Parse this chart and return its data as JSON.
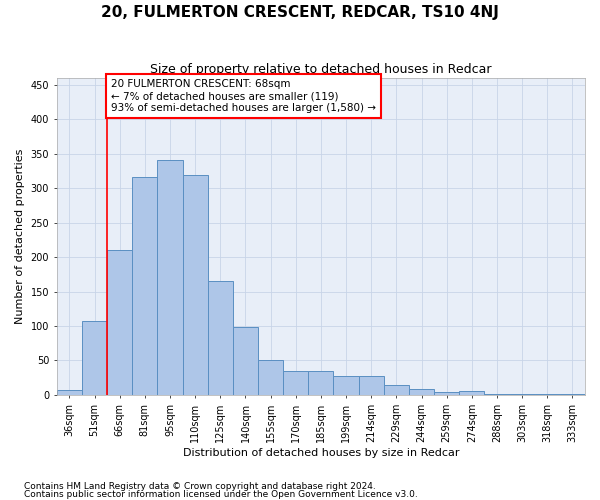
{
  "title": "20, FULMERTON CRESCENT, REDCAR, TS10 4NJ",
  "subtitle": "Size of property relative to detached houses in Redcar",
  "xlabel": "Distribution of detached houses by size in Redcar",
  "ylabel": "Number of detached properties",
  "footnote1": "Contains HM Land Registry data © Crown copyright and database right 2024.",
  "footnote2": "Contains public sector information licensed under the Open Government Licence v3.0.",
  "bin_labels": [
    "36sqm",
    "51sqm",
    "66sqm",
    "81sqm",
    "95sqm",
    "110sqm",
    "125sqm",
    "140sqm",
    "155sqm",
    "170sqm",
    "185sqm",
    "199sqm",
    "214sqm",
    "229sqm",
    "244sqm",
    "259sqm",
    "274sqm",
    "288sqm",
    "303sqm",
    "318sqm",
    "333sqm"
  ],
  "bar_values": [
    7,
    108,
    211,
    317,
    341,
    319,
    165,
    99,
    50,
    35,
    35,
    28,
    28,
    15,
    8,
    4,
    5,
    2,
    1,
    1,
    2
  ],
  "bar_color": "#aec6e8",
  "bar_edge_color": "#5a8fc2",
  "grid_color": "#c8d4e8",
  "bg_color": "#e8eef8",
  "red_line_x": 1.5,
  "annotation_line1": "20 FULMERTON CRESCENT: 68sqm",
  "annotation_line2": "← 7% of detached houses are smaller (119)",
  "annotation_line3": "93% of semi-detached houses are larger (1,580) →",
  "annotation_box_color": "white",
  "annotation_box_edge_color": "red",
  "ylim": [
    0,
    460
  ],
  "yticks": [
    0,
    50,
    100,
    150,
    200,
    250,
    300,
    350,
    400,
    450
  ],
  "title_fontsize": 11,
  "subtitle_fontsize": 9,
  "axis_label_fontsize": 8,
  "tick_fontsize": 7,
  "annotation_fontsize": 7.5,
  "footnote_fontsize": 6.5
}
